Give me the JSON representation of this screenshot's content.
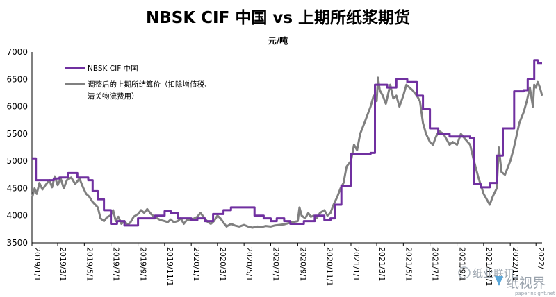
{
  "chart_data": {
    "type": "line",
    "title": "NBSK CIF 中国 vs 上期所纸浆期货",
    "unit_label": "元/吨",
    "ylim": [
      3500,
      7000
    ],
    "yticks": [
      3500,
      4000,
      4500,
      5000,
      5500,
      6000,
      6500,
      7000
    ],
    "x_range": [
      "2019-01-01",
      "2022-03-15"
    ],
    "x_ticks": [
      "2019/1/1",
      "2019/3/1",
      "2019/5/1",
      "2019/7/1",
      "2019/9/1",
      "2019/11/1",
      "2020/1/1",
      "2020/3/1",
      "2020/5/1",
      "2020/7/1",
      "2020/9/1",
      "2020/11/1",
      "2021/1/1",
      "2021/3/1",
      "2021/5/1",
      "2021/7/1",
      "2021/9/1",
      "2021/11/1",
      "2022/1/1",
      "2022/3/1"
    ],
    "x_tick_labels": [
      "2019/1/1",
      "2019/3/1",
      "2019/5/1",
      "2019/7/1",
      "2019/9/1",
      "2019/11/1",
      "2020/1/1",
      "2020/3/1",
      "2020/5/1",
      "2020/7/1",
      "2020/9/1",
      "2020/11/1",
      "2021/1/1",
      "2021/3/1",
      "2021/5/1",
      "2021/7/1",
      "2021/9/1",
      "2021/11/1",
      "2022/1/1",
      "2022/"
    ],
    "legend_position": "top-left",
    "grid": false,
    "series": [
      {
        "name": "NBSK CIF 中国",
        "color": "#7030a0",
        "step": true,
        "points": [
          [
            "2019-01-01",
            5050
          ],
          [
            "2019-01-10",
            4650
          ],
          [
            "2019-02-20",
            4680
          ],
          [
            "2019-03-05",
            4700
          ],
          [
            "2019-03-25",
            4780
          ],
          [
            "2019-04-15",
            4700
          ],
          [
            "2019-05-10",
            4650
          ],
          [
            "2019-05-20",
            4450
          ],
          [
            "2019-06-01",
            4300
          ],
          [
            "2019-06-15",
            4100
          ],
          [
            "2019-07-01",
            3850
          ],
          [
            "2019-07-15",
            3900
          ],
          [
            "2019-08-01",
            3820
          ],
          [
            "2019-08-15",
            3820
          ],
          [
            "2019-09-01",
            3950
          ],
          [
            "2019-10-10",
            4000
          ],
          [
            "2019-11-01",
            4080
          ],
          [
            "2019-11-15",
            4050
          ],
          [
            "2019-12-01",
            3950
          ],
          [
            "2020-01-01",
            3920
          ],
          [
            "2020-01-15",
            3950
          ],
          [
            "2020-02-01",
            3900
          ],
          [
            "2020-02-20",
            4030
          ],
          [
            "2020-03-15",
            4100
          ],
          [
            "2020-04-01",
            4150
          ],
          [
            "2020-05-10",
            4150
          ],
          [
            "2020-05-25",
            4000
          ],
          [
            "2020-06-15",
            3950
          ],
          [
            "2020-07-01",
            3900
          ],
          [
            "2020-07-15",
            3950
          ],
          [
            "2020-08-01",
            3900
          ],
          [
            "2020-08-15",
            3850
          ],
          [
            "2020-09-15",
            3900
          ],
          [
            "2020-10-10",
            4000
          ],
          [
            "2020-11-01",
            3920
          ],
          [
            "2020-11-15",
            3950
          ],
          [
            "2020-11-25",
            4200
          ],
          [
            "2020-12-10",
            4550
          ],
          [
            "2020-12-20",
            4550
          ],
          [
            "2021-01-01",
            5130
          ],
          [
            "2021-02-15",
            5150
          ],
          [
            "2021-02-25",
            6400
          ],
          [
            "2021-03-25",
            6350
          ],
          [
            "2021-04-15",
            6500
          ],
          [
            "2021-05-10",
            6450
          ],
          [
            "2021-06-01",
            6200
          ],
          [
            "2021-06-15",
            5950
          ],
          [
            "2021-07-01",
            5600
          ],
          [
            "2021-07-20",
            5500
          ],
          [
            "2021-08-15",
            5450
          ],
          [
            "2021-09-10",
            5450
          ],
          [
            "2021-10-01",
            5420
          ],
          [
            "2021-10-10",
            4580
          ],
          [
            "2021-10-25",
            4520
          ],
          [
            "2021-11-15",
            4600
          ],
          [
            "2021-12-01",
            5100
          ],
          [
            "2021-12-15",
            5600
          ],
          [
            "2022-01-01",
            5600
          ],
          [
            "2022-01-10",
            6280
          ],
          [
            "2022-02-01",
            6300
          ],
          [
            "2022-02-10",
            6500
          ],
          [
            "2022-02-25",
            6850
          ],
          [
            "2022-03-05",
            6800
          ],
          [
            "2022-03-15",
            6800
          ]
        ]
      },
      {
        "name": "调整后的上期所结算价（扣除增值税、清关物流费用）",
        "legend_lines": [
          "调整后的上期所结算价（扣除增值税、",
          "清关物流费用）"
        ],
        "color": "#808080",
        "step": false,
        "points": [
          [
            "2019-01-01",
            4320
          ],
          [
            "2019-01-07",
            4500
          ],
          [
            "2019-01-12",
            4400
          ],
          [
            "2019-01-18",
            4600
          ],
          [
            "2019-01-25",
            4480
          ],
          [
            "2019-02-01",
            4560
          ],
          [
            "2019-02-10",
            4650
          ],
          [
            "2019-02-16",
            4520
          ],
          [
            "2019-02-22",
            4720
          ],
          [
            "2019-03-01",
            4560
          ],
          [
            "2019-03-08",
            4680
          ],
          [
            "2019-03-15",
            4500
          ],
          [
            "2019-03-22",
            4650
          ],
          [
            "2019-04-01",
            4700
          ],
          [
            "2019-04-10",
            4580
          ],
          [
            "2019-04-20",
            4680
          ],
          [
            "2019-04-28",
            4520
          ],
          [
            "2019-05-05",
            4400
          ],
          [
            "2019-05-12",
            4350
          ],
          [
            "2019-05-20",
            4250
          ],
          [
            "2019-06-01",
            4150
          ],
          [
            "2019-06-07",
            3950
          ],
          [
            "2019-06-15",
            3900
          ],
          [
            "2019-06-22",
            3970
          ],
          [
            "2019-07-01",
            4010
          ],
          [
            "2019-07-06",
            4100
          ],
          [
            "2019-07-12",
            3900
          ],
          [
            "2019-07-18",
            3980
          ],
          [
            "2019-07-25",
            3850
          ],
          [
            "2019-08-01",
            3900
          ],
          [
            "2019-08-08",
            3830
          ],
          [
            "2019-08-15",
            3880
          ],
          [
            "2019-08-22",
            3980
          ],
          [
            "2019-09-01",
            4030
          ],
          [
            "2019-09-08",
            4100
          ],
          [
            "2019-09-15",
            4050
          ],
          [
            "2019-09-22",
            4120
          ],
          [
            "2019-10-01",
            4030
          ],
          [
            "2019-10-08",
            3980
          ],
          [
            "2019-10-15",
            3950
          ],
          [
            "2019-10-22",
            3920
          ],
          [
            "2019-11-01",
            3900
          ],
          [
            "2019-11-08",
            3880
          ],
          [
            "2019-11-15",
            3930
          ],
          [
            "2019-11-22",
            3880
          ],
          [
            "2019-12-01",
            3900
          ],
          [
            "2019-12-08",
            3950
          ],
          [
            "2019-12-15",
            3850
          ],
          [
            "2019-12-22",
            3920
          ],
          [
            "2020-01-01",
            3930
          ],
          [
            "2020-01-08",
            3950
          ],
          [
            "2020-01-15",
            3980
          ],
          [
            "2020-01-22",
            4050
          ],
          [
            "2020-02-01",
            3950
          ],
          [
            "2020-02-08",
            3880
          ],
          [
            "2020-02-15",
            3850
          ],
          [
            "2020-02-22",
            3900
          ],
          [
            "2020-03-01",
            4000
          ],
          [
            "2020-03-08",
            3950
          ],
          [
            "2020-03-15",
            3870
          ],
          [
            "2020-03-22",
            3800
          ],
          [
            "2020-04-01",
            3850
          ],
          [
            "2020-04-10",
            3820
          ],
          [
            "2020-04-20",
            3800
          ],
          [
            "2020-05-01",
            3830
          ],
          [
            "2020-05-10",
            3800
          ],
          [
            "2020-05-20",
            3780
          ],
          [
            "2020-06-01",
            3800
          ],
          [
            "2020-06-10",
            3790
          ],
          [
            "2020-06-20",
            3810
          ],
          [
            "2020-07-01",
            3800
          ],
          [
            "2020-07-10",
            3820
          ],
          [
            "2020-07-20",
            3830
          ],
          [
            "2020-08-01",
            3840
          ],
          [
            "2020-08-10",
            3860
          ],
          [
            "2020-08-20",
            3880
          ],
          [
            "2020-09-01",
            3900
          ],
          [
            "2020-09-05",
            4150
          ],
          [
            "2020-09-10",
            4000
          ],
          [
            "2020-09-18",
            3950
          ],
          [
            "2020-09-25",
            4050
          ],
          [
            "2020-10-01",
            3980
          ],
          [
            "2020-10-08",
            4000
          ],
          [
            "2020-10-15",
            3960
          ],
          [
            "2020-10-22",
            4050
          ],
          [
            "2020-11-01",
            4100
          ],
          [
            "2020-11-08",
            4000
          ],
          [
            "2020-11-15",
            4050
          ],
          [
            "2020-11-22",
            4200
          ],
          [
            "2020-12-01",
            4350
          ],
          [
            "2020-12-08",
            4500
          ],
          [
            "2020-12-15",
            4600
          ],
          [
            "2020-12-22",
            4900
          ],
          [
            "2021-01-01",
            5000
          ],
          [
            "2021-01-08",
            5300
          ],
          [
            "2021-01-15",
            5200
          ],
          [
            "2021-01-22",
            5500
          ],
          [
            "2021-02-01",
            5700
          ],
          [
            "2021-02-08",
            5850
          ],
          [
            "2021-02-15",
            6000
          ],
          [
            "2021-02-22",
            6200
          ],
          [
            "2021-03-01",
            6100
          ],
          [
            "2021-03-04",
            6530
          ],
          [
            "2021-03-08",
            6300
          ],
          [
            "2021-03-15",
            6200
          ],
          [
            "2021-03-22",
            6050
          ],
          [
            "2021-04-01",
            6400
          ],
          [
            "2021-04-08",
            6150
          ],
          [
            "2021-04-15",
            6200
          ],
          [
            "2021-04-22",
            6000
          ],
          [
            "2021-05-01",
            6200
          ],
          [
            "2021-05-08",
            6400
          ],
          [
            "2021-05-15",
            6350
          ],
          [
            "2021-05-22",
            6300
          ],
          [
            "2021-06-01",
            6200
          ],
          [
            "2021-06-08",
            6100
          ],
          [
            "2021-06-15",
            5700
          ],
          [
            "2021-06-22",
            5500
          ],
          [
            "2021-07-01",
            5350
          ],
          [
            "2021-07-08",
            5300
          ],
          [
            "2021-07-15",
            5450
          ],
          [
            "2021-07-22",
            5550
          ],
          [
            "2021-08-01",
            5500
          ],
          [
            "2021-08-08",
            5400
          ],
          [
            "2021-08-15",
            5300
          ],
          [
            "2021-08-22",
            5350
          ],
          [
            "2021-09-01",
            5300
          ],
          [
            "2021-09-10",
            5500
          ],
          [
            "2021-09-20",
            5400
          ],
          [
            "2021-10-01",
            5300
          ],
          [
            "2021-10-10",
            5000
          ],
          [
            "2021-10-20",
            4700
          ],
          [
            "2021-11-01",
            4400
          ],
          [
            "2021-11-08",
            4300
          ],
          [
            "2021-11-15",
            4200
          ],
          [
            "2021-11-22",
            4350
          ],
          [
            "2021-12-01",
            4500
          ],
          [
            "2021-12-06",
            5250
          ],
          [
            "2021-12-12",
            4800
          ],
          [
            "2021-12-20",
            4750
          ],
          [
            "2022-01-01",
            5000
          ],
          [
            "2022-01-08",
            5200
          ],
          [
            "2022-01-15",
            5450
          ],
          [
            "2022-01-22",
            5700
          ],
          [
            "2022-02-01",
            5900
          ],
          [
            "2022-02-08",
            6100
          ],
          [
            "2022-02-15",
            6350
          ],
          [
            "2022-02-22",
            6000
          ],
          [
            "2022-02-25",
            6400
          ],
          [
            "2022-03-01",
            6350
          ],
          [
            "2022-03-05",
            6450
          ],
          [
            "2022-03-10",
            6350
          ],
          [
            "2022-03-15",
            6200
          ]
        ]
      }
    ]
  },
  "watermark": {
    "wechat_text": "纸业联讯",
    "brand_text": "纸视界",
    "site_text": "paperinsight.net"
  }
}
